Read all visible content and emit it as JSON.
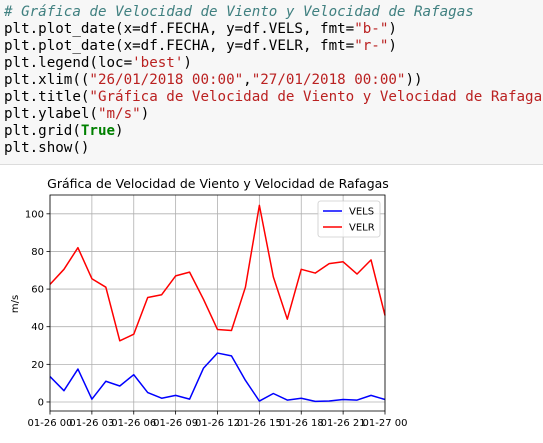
{
  "code_cell": {
    "lines": [
      [
        {
          "t": "# Gráfica de Velocidad de Viento y Velocidad de Rafagas",
          "c": "cm"
        }
      ],
      [
        {
          "t": "plt.plot_date(x=df.FECHA, y=df.VELS, fmt="
        },
        {
          "t": "\"b-\"",
          "c": "st"
        },
        {
          "t": ")"
        }
      ],
      [
        {
          "t": "plt.plot_date(x=df.FECHA, y=df.VELR, fmt="
        },
        {
          "t": "\"r-\"",
          "c": "st"
        },
        {
          "t": ")"
        }
      ],
      [
        {
          "t": "plt.legend(loc="
        },
        {
          "t": "'best'",
          "c": "st"
        },
        {
          "t": ")"
        }
      ],
      [
        {
          "t": "plt.xlim(("
        },
        {
          "t": "\"26/01/2018 00:00\"",
          "c": "st"
        },
        {
          "t": ","
        },
        {
          "t": "\"27/01/2018 00:00\"",
          "c": "st"
        },
        {
          "t": "))"
        }
      ],
      [
        {
          "t": "plt.title("
        },
        {
          "t": "\"Gráfica de Velocidad de Viento y Velocidad de Rafagas\"",
          "c": "st"
        },
        {
          "t": ")"
        }
      ],
      [
        {
          "t": "plt.ylabel("
        },
        {
          "t": "\"m/s\"",
          "c": "st"
        },
        {
          "t": ")"
        }
      ],
      [
        {
          "t": "plt.grid("
        },
        {
          "t": "True",
          "c": "kw"
        },
        {
          "t": ")"
        }
      ],
      [
        {
          "t": "plt.show()"
        }
      ]
    ]
  },
  "chart_data": {
    "type": "line",
    "title": "Gráfica de Velocidad de Viento y Velocidad de Rafagas",
    "ylabel": "m/s",
    "xlabel": "",
    "xlim": [
      "2018-01-26 00:00",
      "2018-01-27 00:00"
    ],
    "ylim": [
      -4.8,
      110
    ],
    "x_ticks": [
      "01-26 00",
      "01-26 03",
      "01-26 06",
      "01-26 09",
      "01-26 12",
      "01-26 15",
      "01-26 18",
      "01-26 21",
      "01-27 00"
    ],
    "y_ticks": [
      0,
      20,
      40,
      60,
      80,
      100
    ],
    "grid": true,
    "legend_loc": "upper right",
    "x": [
      "2018-01-26 00:00",
      "2018-01-26 01:00",
      "2018-01-26 02:00",
      "2018-01-26 03:00",
      "2018-01-26 04:00",
      "2018-01-26 05:00",
      "2018-01-26 06:00",
      "2018-01-26 07:00",
      "2018-01-26 08:00",
      "2018-01-26 09:00",
      "2018-01-26 10:00",
      "2018-01-26 11:00",
      "2018-01-26 12:00",
      "2018-01-26 13:00",
      "2018-01-26 14:00",
      "2018-01-26 15:00",
      "2018-01-26 16:00",
      "2018-01-26 17:00",
      "2018-01-26 18:00",
      "2018-01-26 19:00",
      "2018-01-26 20:00",
      "2018-01-26 21:00",
      "2018-01-26 22:00",
      "2018-01-26 23:00",
      "2018-01-27 00:00"
    ],
    "series": [
      {
        "name": "VELS",
        "color": "#0000ff",
        "values": [
          13.5,
          6,
          17.5,
          1.5,
          11,
          8.5,
          14.5,
          5,
          2,
          3.5,
          1.5,
          18,
          26,
          24.5,
          11.5,
          0.5,
          4.5,
          1,
          2,
          0.3,
          0.5,
          1.3,
          1,
          3.5,
          1.3
        ]
      },
      {
        "name": "VELR",
        "color": "#ff0000",
        "values": [
          62.5,
          70.5,
          82,
          65.5,
          61,
          32.5,
          36,
          55.5,
          57,
          67,
          69,
          54.5,
          38.5,
          38,
          61,
          104.5,
          66.5,
          44,
          70.5,
          68.5,
          73.5,
          74.5,
          68,
          75.5,
          46
        ]
      }
    ]
  }
}
